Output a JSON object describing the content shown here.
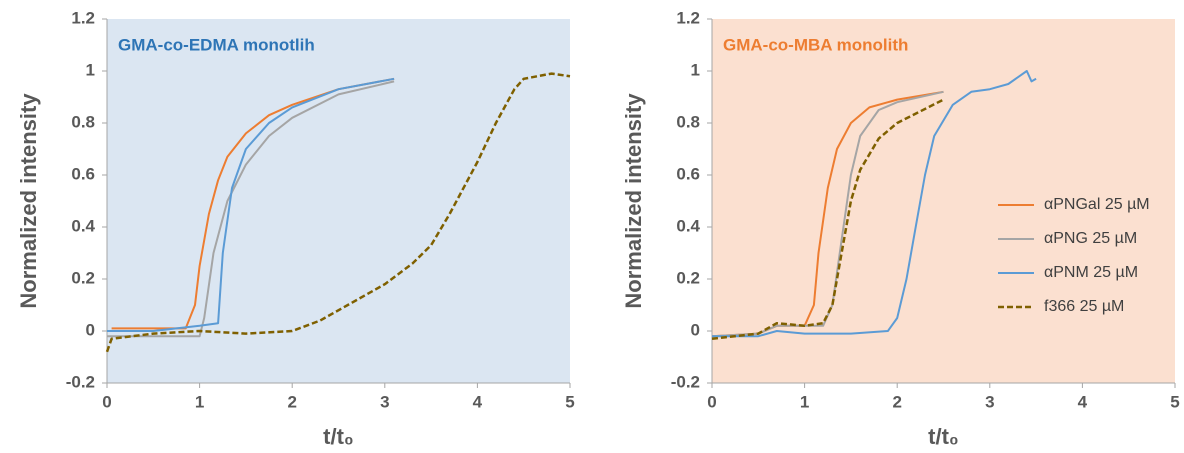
{
  "chart_data": [
    {
      "type": "line",
      "title": "GMA-co-EDMA monotlih",
      "title_color": "#2e75b6",
      "background": "#dbe6f2",
      "x_label": "t/t₀",
      "y_label": "Normalized intensity",
      "xlim": [
        0,
        5
      ],
      "xticks": [
        0,
        1,
        2,
        3,
        4,
        5
      ],
      "ylim": [
        -0.2,
        1.2
      ],
      "yticks": [
        -0.2,
        0,
        0.2,
        0.4,
        0.6,
        0.8,
        1,
        1.2
      ],
      "grid": false,
      "legend": false,
      "series": [
        {
          "color": "#ed7d31",
          "dash": false,
          "x": [
            0.05,
            0.5,
            0.85,
            0.95,
            1.0,
            1.1,
            1.2,
            1.3,
            1.5,
            1.75,
            2.0,
            2.5,
            3.1
          ],
          "values": [
            0.01,
            0.01,
            0.01,
            0.1,
            0.25,
            0.45,
            0.58,
            0.67,
            0.76,
            0.83,
            0.87,
            0.93,
            0.97
          ]
        },
        {
          "color": "#a5a5a5",
          "dash": false,
          "x": [
            0.0,
            0.5,
            1.0,
            1.05,
            1.15,
            1.3,
            1.5,
            1.75,
            2.0,
            2.5,
            3.1
          ],
          "values": [
            -0.02,
            -0.02,
            -0.02,
            0.05,
            0.3,
            0.5,
            0.64,
            0.75,
            0.82,
            0.91,
            0.96
          ]
        },
        {
          "color": "#5b9bd5",
          "dash": false,
          "x": [
            0.0,
            0.5,
            1.0,
            1.2,
            1.25,
            1.35,
            1.5,
            1.75,
            2.0,
            2.5,
            3.1
          ],
          "values": [
            0.0,
            0.0,
            0.02,
            0.03,
            0.3,
            0.55,
            0.7,
            0.8,
            0.86,
            0.93,
            0.97
          ]
        },
        {
          "color": "#7f6000",
          "dash": true,
          "x": [
            0.0,
            0.05,
            0.5,
            1.0,
            1.5,
            2.0,
            2.3,
            2.6,
            3.0,
            3.3,
            3.5,
            3.7,
            4.0,
            4.2,
            4.4,
            4.5,
            4.8,
            5.0
          ],
          "values": [
            -0.08,
            -0.03,
            -0.01,
            0.0,
            -0.01,
            0.0,
            0.04,
            0.1,
            0.18,
            0.26,
            0.33,
            0.45,
            0.65,
            0.8,
            0.93,
            0.97,
            0.99,
            0.98
          ]
        }
      ]
    },
    {
      "type": "line",
      "title": "GMA-co-MBA monolith",
      "title_color": "#ed7d31",
      "background": "#fbe0d0",
      "x_label": "t/t₀",
      "y_label": "Normalized intensity",
      "xlim": [
        0,
        5
      ],
      "xticks": [
        0,
        1,
        2,
        3,
        4,
        5
      ],
      "ylim": [
        -0.2,
        1.2
      ],
      "yticks": [
        -0.2,
        0,
        0.2,
        0.4,
        0.6,
        0.8,
        1,
        1.2
      ],
      "grid": false,
      "legend": "right",
      "series": [
        {
          "name": "αPNGal 25 µM",
          "color": "#ed7d31",
          "dash": false,
          "x": [
            0.0,
            0.5,
            0.7,
            1.0,
            1.1,
            1.15,
            1.25,
            1.35,
            1.5,
            1.7,
            2.0,
            2.5
          ],
          "values": [
            -0.02,
            -0.01,
            0.02,
            0.02,
            0.1,
            0.3,
            0.55,
            0.7,
            0.8,
            0.86,
            0.89,
            0.92
          ]
        },
        {
          "name": "αPNG 25 µM",
          "color": "#a5a5a5",
          "dash": false,
          "x": [
            0.0,
            0.5,
            0.7,
            1.2,
            1.3,
            1.4,
            1.5,
            1.6,
            1.8,
            2.0,
            2.5
          ],
          "values": [
            -0.02,
            -0.01,
            0.02,
            0.02,
            0.1,
            0.35,
            0.6,
            0.75,
            0.85,
            0.88,
            0.92
          ]
        },
        {
          "name": "αPNM 25 µM",
          "color": "#5b9bd5",
          "dash": false,
          "x": [
            0.0,
            0.5,
            0.7,
            1.0,
            1.5,
            1.9,
            2.0,
            2.1,
            2.2,
            2.3,
            2.4,
            2.6,
            2.8,
            3.0,
            3.2,
            3.4,
            3.45,
            3.5
          ],
          "values": [
            -0.02,
            -0.02,
            0.0,
            -0.01,
            -0.01,
            0.0,
            0.05,
            0.2,
            0.4,
            0.6,
            0.75,
            0.87,
            0.92,
            0.93,
            0.95,
            1.0,
            0.96,
            0.97
          ]
        },
        {
          "name": "f366 25 µM",
          "color": "#7f6000",
          "dash": true,
          "x": [
            0.0,
            0.5,
            0.7,
            1.0,
            1.2,
            1.3,
            1.4,
            1.5,
            1.6,
            1.8,
            2.0,
            2.5
          ],
          "values": [
            -0.03,
            -0.01,
            0.03,
            0.02,
            0.03,
            0.1,
            0.3,
            0.5,
            0.62,
            0.74,
            0.8,
            0.89
          ]
        }
      ]
    }
  ]
}
